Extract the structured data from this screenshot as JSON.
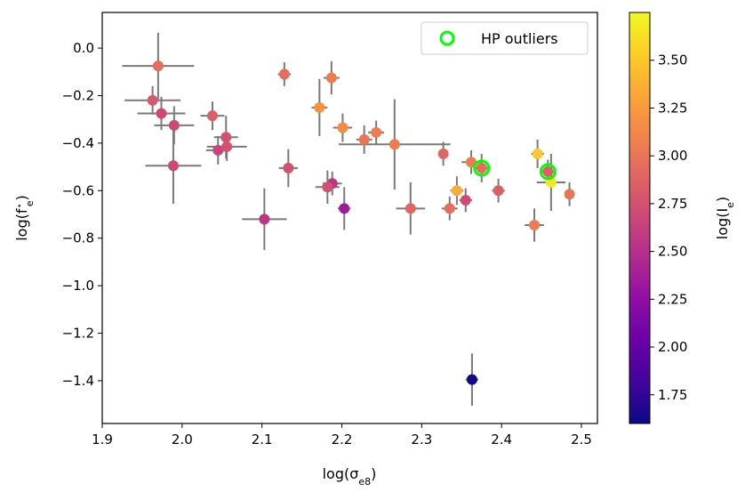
{
  "chart_data": {
    "type": "scatter",
    "title": "",
    "xlabel": "log(σ",
    "xlabel_sub": "e8",
    "xlabel_close": ")",
    "ylabel": "log(f",
    "ylabel_sup": "⋆",
    "ylabel_sub": "e",
    "ylabel_close": ")",
    "xlim": [
      1.9,
      2.52
    ],
    "ylim": [
      -1.58,
      0.15
    ],
    "xticks": [
      1.9,
      2.0,
      2.1,
      2.2,
      2.3,
      2.4,
      2.5
    ],
    "xtick_labels": [
      "1.9",
      "2.0",
      "2.1",
      "2.2",
      "2.3",
      "2.4",
      "2.5"
    ],
    "yticks": [
      0.0,
      -0.2,
      -0.4,
      -0.6,
      -0.8,
      -1.0,
      -1.2,
      -1.4
    ],
    "ytick_labels": [
      "0.0",
      "−0.2",
      "−0.4",
      "−0.6",
      "−0.8",
      "−1.0",
      "−1.2",
      "−1.4"
    ],
    "colorbar": {
      "label": "log(I",
      "label_sub": "e",
      "label_close": ")",
      "cmap": "plasma",
      "range": [
        1.6,
        3.75
      ],
      "ticks": [
        1.75,
        2.0,
        2.25,
        2.5,
        2.75,
        3.0,
        3.25,
        3.5
      ],
      "tick_labels": [
        "1.75",
        "2.00",
        "2.25",
        "2.50",
        "2.75",
        "3.00",
        "3.25",
        "3.50"
      ]
    },
    "legend": {
      "position": "top-right",
      "label": "HP outliers",
      "marker_color": "#00ff00"
    },
    "errorbar_color": "#7a7a7a",
    "points": [
      {
        "x": 1.97,
        "y": -0.075,
        "xerr": 0.045,
        "yerr": 0.14,
        "c": 2.95
      },
      {
        "x": 1.963,
        "y": -0.22,
        "xerr": 0.035,
        "yerr": 0.06,
        "c": 2.8
      },
      {
        "x": 1.974,
        "y": -0.275,
        "xerr": 0.03,
        "yerr": 0.07,
        "c": 2.7
      },
      {
        "x": 1.99,
        "y": -0.325,
        "xerr": 0.025,
        "yerr": 0.08,
        "c": 2.7
      },
      {
        "x": 1.989,
        "y": -0.495,
        "xerr": 0.035,
        "yerr": 0.16,
        "c": 2.7
      },
      {
        "x": 2.038,
        "y": -0.285,
        "xerr": 0.015,
        "yerr": 0.06,
        "c": 2.85
      },
      {
        "x": 2.055,
        "y": -0.375,
        "xerr": 0.015,
        "yerr": 0.09,
        "c": 2.75
      },
      {
        "x": 2.045,
        "y": -0.43,
        "xerr": 0.015,
        "yerr": 0.06,
        "c": 2.65
      },
      {
        "x": 2.056,
        "y": -0.415,
        "xerr": 0.025,
        "yerr": 0.06,
        "c": 2.75
      },
      {
        "x": 2.103,
        "y": -0.72,
        "xerr": 0.028,
        "yerr": 0.13,
        "c": 2.55
      },
      {
        "x": 2.128,
        "y": -0.11,
        "xerr": 0.008,
        "yerr": 0.05,
        "c": 2.95
      },
      {
        "x": 2.133,
        "y": -0.505,
        "xerr": 0.012,
        "yerr": 0.08,
        "c": 2.75
      },
      {
        "x": 2.172,
        "y": -0.25,
        "xerr": 0.01,
        "yerr": 0.12,
        "c": 3.2
      },
      {
        "x": 2.187,
        "y": -0.125,
        "xerr": 0.01,
        "yerr": 0.07,
        "c": 3.05
      },
      {
        "x": 2.201,
        "y": -0.335,
        "xerr": 0.012,
        "yerr": 0.06,
        "c": 3.15
      },
      {
        "x": 2.228,
        "y": -0.385,
        "xerr": 0.01,
        "yerr": 0.06,
        "c": 3.0
      },
      {
        "x": 2.243,
        "y": -0.355,
        "xerr": 0.01,
        "yerr": 0.05,
        "c": 3.05
      },
      {
        "x": 2.266,
        "y": -0.405,
        "xerr": 0.07,
        "yerr": 0.19,
        "c": 3.05
      },
      {
        "x": 2.188,
        "y": -0.57,
        "xerr": 0.012,
        "yerr": 0.05,
        "c": 2.55
      },
      {
        "x": 2.182,
        "y": -0.585,
        "xerr": 0.015,
        "yerr": 0.07,
        "c": 2.75
      },
      {
        "x": 2.203,
        "y": -0.675,
        "xerr": 0.008,
        "yerr": 0.09,
        "c": 2.35
      },
      {
        "x": 2.286,
        "y": -0.675,
        "xerr": 0.018,
        "yerr": 0.11,
        "c": 2.9
      },
      {
        "x": 2.327,
        "y": -0.445,
        "xerr": 0.006,
        "yerr": 0.05,
        "c": 2.9
      },
      {
        "x": 2.335,
        "y": -0.675,
        "xerr": 0.01,
        "yerr": 0.05,
        "c": 2.95
      },
      {
        "x": 2.344,
        "y": -0.6,
        "xerr": 0.008,
        "yerr": 0.06,
        "c": 3.35
      },
      {
        "x": 2.355,
        "y": -0.64,
        "xerr": 0.008,
        "yerr": 0.05,
        "c": 2.7
      },
      {
        "x": 2.362,
        "y": -0.48,
        "xerr": 0.012,
        "yerr": 0.05,
        "c": 3.05
      },
      {
        "x": 2.375,
        "y": -0.505,
        "xerr": 0.01,
        "yerr": 0.06,
        "c": 2.95,
        "outlier": true
      },
      {
        "x": 2.396,
        "y": -0.6,
        "xerr": 0.008,
        "yerr": 0.05,
        "c": 2.85
      },
      {
        "x": 2.441,
        "y": -0.745,
        "xerr": 0.012,
        "yerr": 0.07,
        "c": 3.05
      },
      {
        "x": 2.445,
        "y": -0.445,
        "xerr": 0.008,
        "yerr": 0.06,
        "c": 3.5
      },
      {
        "x": 2.462,
        "y": -0.565,
        "xerr": 0.018,
        "yerr": 0.12,
        "c": 3.65
      },
      {
        "x": 2.458,
        "y": -0.52,
        "xerr": 0.01,
        "yerr": 0.05,
        "c": 2.85,
        "outlier": true
      },
      {
        "x": 2.485,
        "y": -0.615,
        "xerr": 0.006,
        "yerr": 0.05,
        "c": 3.0
      },
      {
        "x": 2.363,
        "y": -1.395,
        "xerr": 0.008,
        "yerr": 0.11,
        "c": 1.62
      }
    ]
  }
}
